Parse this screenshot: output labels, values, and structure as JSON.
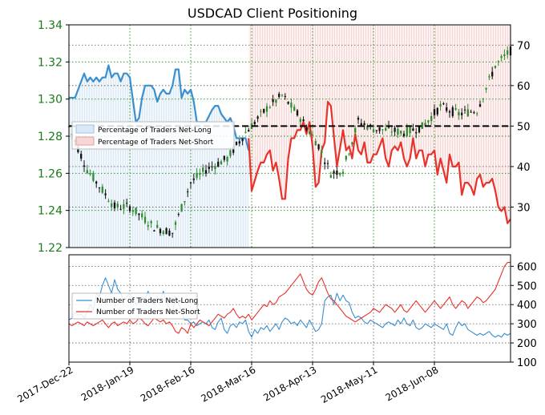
{
  "chart_data": [
    {
      "type": "candlestick+line",
      "title": "USDCAD Client Positioning",
      "left_axis": {
        "ticks": [
          "1.34",
          "1.32",
          "1.30",
          "1.28",
          "1.26",
          "1.24",
          "1.22"
        ],
        "ylim": [
          1.22,
          1.34
        ],
        "color": "#1a7a1a"
      },
      "right_axis": {
        "ticks": [
          "70",
          "60",
          "50",
          "40",
          "30"
        ],
        "ylim": [
          20,
          75
        ]
      },
      "x_ticks": [
        "2017-Dec-22",
        "2018-Jan-19",
        "2018-Feb-16",
        "2018-Mar-16",
        "2018-Apr-13",
        "2018-May-11",
        "2018-Jun-08"
      ],
      "reference_line": 50,
      "legend": {
        "placement": "upper-left",
        "items": [
          "Percentage of Traders Net-Long",
          "Percentage of Traders Net-Short"
        ]
      },
      "series": [
        {
          "name": "Percentage of Traders Net-Long",
          "color": "#3a8fd0",
          "points": [
            [
              0,
              57
            ],
            [
              2,
              57
            ],
            [
              4,
              61
            ],
            [
              5,
              63
            ],
            [
              6,
              61
            ],
            [
              7,
              62
            ],
            [
              8,
              61
            ],
            [
              9,
              62
            ],
            [
              10,
              61
            ],
            [
              11,
              62
            ],
            [
              12,
              62
            ],
            [
              13,
              65
            ],
            [
              14,
              62
            ],
            [
              15,
              63
            ],
            [
              16,
              63
            ],
            [
              17,
              61
            ],
            [
              18,
              63
            ],
            [
              19,
              63
            ],
            [
              20,
              62
            ],
            [
              22,
              51
            ],
            [
              23,
              52
            ],
            [
              24,
              57
            ],
            [
              25,
              60
            ],
            [
              26,
              60
            ],
            [
              27,
              60
            ],
            [
              28,
              59
            ],
            [
              29,
              56
            ],
            [
              30,
              58
            ],
            [
              31,
              59
            ],
            [
              32,
              58
            ],
            [
              33,
              58
            ],
            [
              34,
              60
            ],
            [
              35,
              64
            ],
            [
              36,
              64
            ],
            [
              37,
              57
            ],
            [
              38,
              59
            ],
            [
              39,
              58
            ],
            [
              40,
              59
            ],
            [
              41,
              56
            ],
            [
              42,
              51
            ],
            [
              45,
              51
            ],
            [
              47,
              54
            ],
            [
              48,
              55
            ],
            [
              49,
              55
            ],
            [
              50,
              53
            ],
            [
              51,
              52
            ],
            [
              52,
              51
            ],
            [
              53,
              52
            ],
            [
              54,
              50
            ],
            [
              55,
              47
            ],
            [
              56,
              47
            ],
            [
              57,
              47
            ],
            [
              58,
              47
            ],
            [
              59,
              44
            ]
          ]
        },
        {
          "name": "Percentage of Traders Net-Short",
          "color": "#e8322b",
          "points": [
            [
              59,
              47
            ],
            [
              60,
              34
            ],
            [
              62,
              39
            ],
            [
              63,
              41
            ],
            [
              64,
              41
            ],
            [
              65,
              43
            ],
            [
              66,
              44
            ],
            [
              67,
              39
            ],
            [
              68,
              41
            ],
            [
              69,
              37
            ],
            [
              70,
              32
            ],
            [
              71,
              32
            ],
            [
              72,
              42
            ],
            [
              73,
              47
            ],
            [
              74,
              47
            ],
            [
              75,
              49
            ],
            [
              76,
              49
            ],
            [
              77,
              51
            ],
            [
              78,
              48
            ],
            [
              79,
              51
            ],
            [
              80,
              45
            ],
            [
              81,
              35
            ],
            [
              82,
              36
            ],
            [
              83,
              44
            ],
            [
              84,
              46
            ],
            [
              85,
              56
            ],
            [
              86,
              55
            ],
            [
              88,
              40
            ],
            [
              90,
              49
            ],
            [
              91,
              44
            ],
            [
              92,
              45
            ],
            [
              93,
              42
            ],
            [
              94,
              48
            ],
            [
              95,
              44
            ],
            [
              96,
              43
            ],
            [
              97,
              46
            ],
            [
              98,
              41
            ],
            [
              99,
              41
            ],
            [
              100,
              43
            ],
            [
              101,
              43
            ],
            [
              102,
              45
            ],
            [
              103,
              47
            ],
            [
              104,
              42
            ],
            [
              105,
              40
            ],
            [
              106,
              44
            ],
            [
              107,
              45
            ],
            [
              108,
              44
            ],
            [
              109,
              46
            ],
            [
              110,
              42
            ],
            [
              111,
              40
            ],
            [
              112,
              42
            ],
            [
              113,
              47
            ],
            [
              114,
              42
            ],
            [
              115,
              44
            ],
            [
              116,
              44
            ],
            [
              117,
              40
            ],
            [
              118,
              43
            ],
            [
              119,
              43
            ],
            [
              120,
              44
            ],
            [
              121,
              38
            ],
            [
              122,
              42
            ],
            [
              123,
              39
            ],
            [
              124,
              36
            ],
            [
              125,
              43
            ],
            [
              126,
              40
            ],
            [
              127,
              40
            ],
            [
              128,
              41
            ],
            [
              129,
              33
            ],
            [
              130,
              36
            ],
            [
              131,
              36
            ],
            [
              132,
              35
            ],
            [
              133,
              33
            ],
            [
              134,
              37
            ],
            [
              135,
              38
            ],
            [
              136,
              35
            ],
            [
              137,
              36
            ],
            [
              138,
              36
            ],
            [
              139,
              37
            ],
            [
              140,
              34
            ],
            [
              141,
              30
            ],
            [
              142,
              29
            ],
            [
              143,
              30
            ],
            [
              144,
              26
            ],
            [
              145,
              27
            ]
          ]
        }
      ]
    },
    {
      "type": "line",
      "right_axis": {
        "ticks": [
          "600",
          "500",
          "400",
          "300",
          "200",
          "100"
        ],
        "ylim": [
          100,
          660
        ]
      },
      "legend": {
        "placement": "left",
        "items": [
          "Number of Traders Net-Long",
          "Number of Traders Net-Short"
        ]
      },
      "series": [
        {
          "name": "Number of Traders Net-Long",
          "color": "#3a8fd0",
          "values": [
            320,
            330,
            360,
            345,
            350,
            330,
            360,
            400,
            370,
            460,
            440,
            500,
            540,
            500,
            460,
            530,
            480,
            460,
            420,
            440,
            460,
            430,
            400,
            420,
            440,
            430,
            470,
            420,
            400,
            440,
            420,
            470,
            410,
            380,
            360,
            440,
            410,
            360,
            320,
            320,
            300,
            310,
            290,
            300,
            310,
            300,
            320,
            280,
            270,
            310,
            330,
            270,
            250,
            290,
            300,
            280,
            310,
            300,
            320,
            260,
            230,
            270,
            250,
            280,
            270,
            290,
            260,
            280,
            300,
            270,
            310,
            330,
            320,
            300,
            310,
            290,
            320,
            300,
            280,
            320,
            290,
            260,
            270,
            300,
            420,
            440,
            450,
            400,
            460,
            420,
            450,
            420,
            410,
            360,
            330,
            340,
            330,
            310,
            300,
            320,
            310,
            300,
            290,
            280,
            300,
            310,
            300,
            290,
            320,
            300,
            330,
            300,
            290,
            320,
            280,
            270,
            280,
            300,
            290,
            280,
            300,
            290,
            280,
            270,
            300,
            250,
            240,
            280,
            310,
            290,
            300,
            270,
            260,
            250,
            240,
            250,
            240,
            250,
            260,
            240,
            230,
            240,
            230,
            250,
            240,
            250
          ]
        },
        {
          "name": "Number of Traders Net-Short",
          "color": "#e8322b",
          "values": [
            300,
            290,
            300,
            310,
            300,
            290,
            310,
            300,
            290,
            300,
            310,
            320,
            300,
            280,
            300,
            310,
            290,
            300,
            310,
            300,
            320,
            300,
            310,
            330,
            320,
            300,
            290,
            310,
            330,
            320,
            310,
            320,
            300,
            310,
            290,
            260,
            250,
            280,
            270,
            250,
            300,
            280,
            300,
            320,
            310,
            300,
            290,
            310,
            330,
            350,
            340,
            330,
            350,
            360,
            380,
            350,
            330,
            340,
            330,
            350,
            320,
            340,
            360,
            380,
            400,
            390,
            420,
            400,
            410,
            440,
            450,
            460,
            480,
            500,
            520,
            540,
            560,
            520,
            480,
            460,
            450,
            480,
            520,
            540,
            500,
            460,
            430,
            420,
            400,
            380,
            360,
            340,
            330,
            320,
            310,
            320,
            330,
            340,
            350,
            360,
            380,
            370,
            360,
            380,
            400,
            390,
            380,
            360,
            380,
            400,
            370,
            360,
            380,
            400,
            420,
            400,
            380,
            360,
            380,
            400,
            420,
            400,
            380,
            400,
            420,
            440,
            400,
            380,
            400,
            420,
            410,
            380,
            400,
            420,
            440,
            430,
            410,
            420,
            440,
            460,
            480,
            520,
            560,
            600,
            620,
            620
          ]
        }
      ]
    }
  ]
}
